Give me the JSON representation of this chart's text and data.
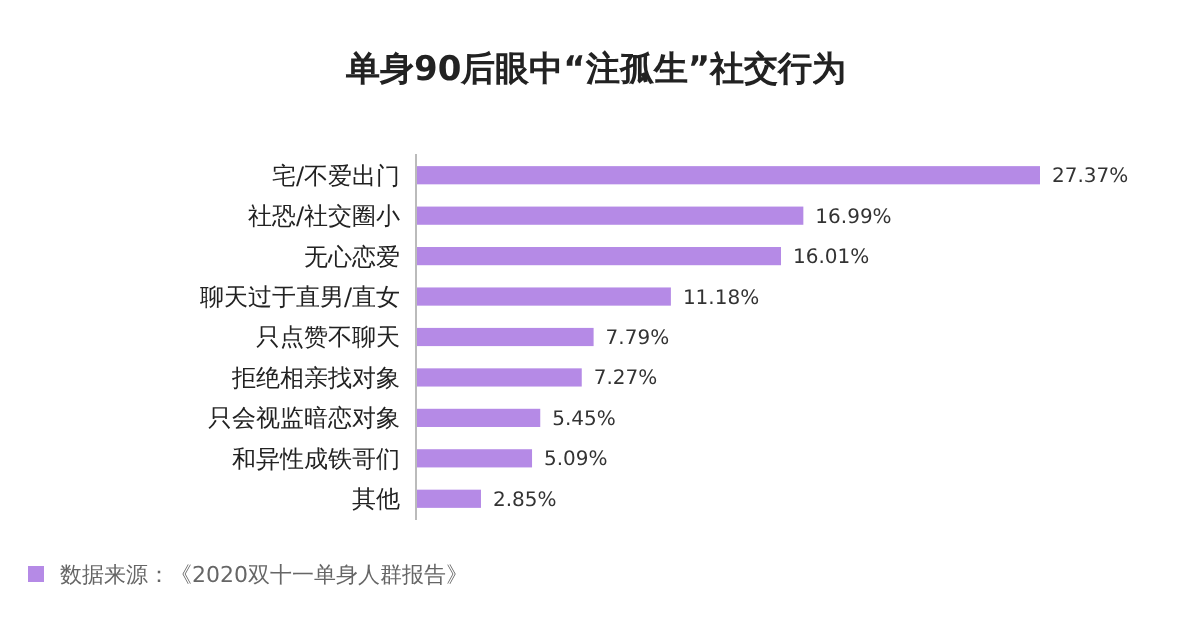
{
  "chart_data": {
    "type": "bar",
    "orientation": "horizontal",
    "title": "单身90后眼中“注孤生”社交行为",
    "categories": [
      "宅/不爱出门",
      "社恐/社交圈小",
      "无心恋爱",
      "聊天过于直男/直女",
      "只点赞不聊天",
      "拒绝相亲找对象",
      "只会视监暗恋对象",
      "和异性成铁哥们",
      "其他"
    ],
    "values": [
      27.37,
      16.99,
      16.01,
      11.18,
      7.79,
      7.27,
      5.45,
      5.09,
      2.85
    ],
    "value_labels": [
      "27.37%",
      "16.99%",
      "16.01%",
      "11.18%",
      "7.79%",
      "7.27%",
      "5.45%",
      "5.09%",
      "2.85%"
    ],
    "color": "#b58ae6",
    "annotations": [
      "数据来源：《2020双十一单身人群报告》"
    ]
  }
}
